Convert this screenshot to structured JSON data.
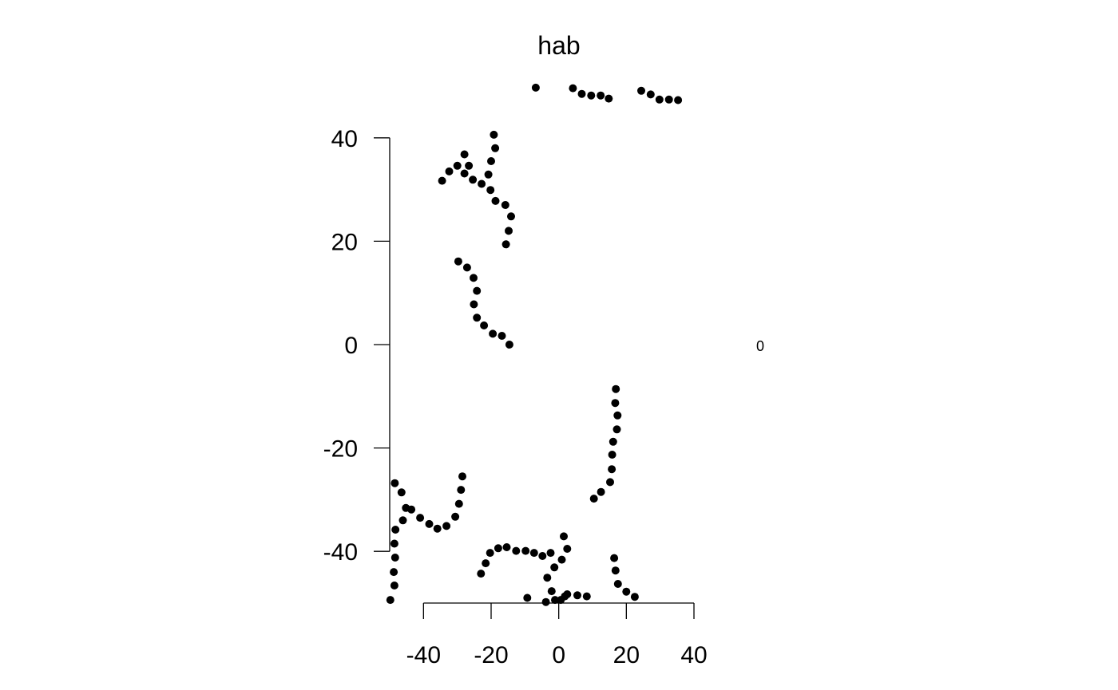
{
  "chart_data": {
    "type": "scatter",
    "title": "hab",
    "xlabel": "",
    "ylabel": "",
    "xlim": [
      -50,
      40
    ],
    "ylim": [
      -50,
      50
    ],
    "x_ticks": [
      -40,
      -20,
      0,
      20,
      40
    ],
    "y_ticks": [
      -40,
      -20,
      0,
      20,
      40
    ],
    "x_tick_labels": [
      "-40",
      "-20",
      "0",
      "20",
      "40"
    ],
    "y_tick_labels": [
      "-40",
      "-20",
      "0",
      "20",
      "40"
    ],
    "side_label": "0",
    "grid": false,
    "series": [
      {
        "points": [
          [
            -6.8,
            49.7
          ],
          [
            4.2,
            49.6
          ],
          [
            6.8,
            48.5
          ],
          [
            9.6,
            48.2
          ],
          [
            12.4,
            48.2
          ],
          [
            14.8,
            47.6
          ],
          [
            24.4,
            49.1
          ],
          [
            27.2,
            48.4
          ],
          [
            29.8,
            47.4
          ],
          [
            32.6,
            47.4
          ],
          [
            35.3,
            47.3
          ],
          [
            -19.2,
            40.6
          ],
          [
            -18.8,
            38.0
          ],
          [
            -20.0,
            35.5
          ],
          [
            -20.8,
            32.9
          ],
          [
            -27.9,
            36.8
          ],
          [
            -30.0,
            34.6
          ],
          [
            -26.6,
            34.6
          ],
          [
            -32.4,
            33.5
          ],
          [
            -27.9,
            33.1
          ],
          [
            -34.5,
            31.7
          ],
          [
            -25.4,
            31.9
          ],
          [
            -22.8,
            31.1
          ],
          [
            -20.2,
            29.9
          ],
          [
            -18.7,
            27.8
          ],
          [
            -15.8,
            27.0
          ],
          [
            -14.1,
            24.8
          ],
          [
            -14.8,
            22.0
          ],
          [
            -15.6,
            19.4
          ],
          [
            -29.7,
            16.1
          ],
          [
            -27.1,
            14.9
          ],
          [
            -25.2,
            12.9
          ],
          [
            -24.2,
            10.4
          ],
          [
            -25.1,
            7.8
          ],
          [
            -24.2,
            5.2
          ],
          [
            -22.1,
            3.7
          ],
          [
            -19.5,
            2.1
          ],
          [
            -16.8,
            1.7
          ],
          [
            -14.6,
            0.0
          ],
          [
            16.9,
            -8.6
          ],
          [
            16.7,
            -11.3
          ],
          [
            17.4,
            -13.7
          ],
          [
            17.2,
            -16.4
          ],
          [
            16.1,
            -18.8
          ],
          [
            15.8,
            -21.3
          ],
          [
            15.7,
            -24.1
          ],
          [
            15.2,
            -26.6
          ],
          [
            12.5,
            -28.5
          ],
          [
            10.4,
            -29.8
          ],
          [
            -28.5,
            -25.5
          ],
          [
            -28.9,
            -28.1
          ],
          [
            -29.5,
            -30.8
          ],
          [
            -30.6,
            -33.3
          ],
          [
            -33.2,
            -35.1
          ],
          [
            -35.9,
            -35.6
          ],
          [
            -38.3,
            -34.7
          ],
          [
            -41.0,
            -33.5
          ],
          [
            -43.6,
            -31.9
          ],
          [
            -45.2,
            -31.6
          ],
          [
            -46.1,
            -34.0
          ],
          [
            -46.5,
            -28.6
          ],
          [
            -48.5,
            -26.8
          ],
          [
            -48.3,
            -35.8
          ],
          [
            -48.6,
            -38.5
          ],
          [
            -48.4,
            -41.2
          ],
          [
            -48.8,
            -44.0
          ],
          [
            -48.6,
            -46.6
          ],
          [
            -49.8,
            -49.4
          ],
          [
            -23.0,
            -44.3
          ],
          [
            -21.6,
            -42.3
          ],
          [
            -20.3,
            -40.3
          ],
          [
            -17.9,
            -39.4
          ],
          [
            -15.4,
            -39.2
          ],
          [
            -12.6,
            -39.9
          ],
          [
            -9.8,
            -39.9
          ],
          [
            -7.3,
            -40.3
          ],
          [
            -4.8,
            -40.9
          ],
          [
            -2.4,
            -40.3
          ],
          [
            0.9,
            -41.6
          ],
          [
            2.5,
            -39.5
          ],
          [
            1.5,
            -37.1
          ],
          [
            -1.3,
            -43.1
          ],
          [
            -3.4,
            -45.1
          ],
          [
            -2.1,
            -47.7
          ],
          [
            -9.3,
            -49.0
          ],
          [
            -3.8,
            -49.8
          ],
          [
            -1.1,
            -49.4
          ],
          [
            0.6,
            -49.4
          ],
          [
            1.8,
            -48.7
          ],
          [
            2.5,
            -48.3
          ],
          [
            5.5,
            -48.5
          ],
          [
            8.3,
            -48.7
          ],
          [
            16.4,
            -41.3
          ],
          [
            16.8,
            -43.7
          ],
          [
            17.5,
            -46.3
          ],
          [
            20.0,
            -47.8
          ],
          [
            22.5,
            -48.8
          ]
        ]
      }
    ]
  }
}
